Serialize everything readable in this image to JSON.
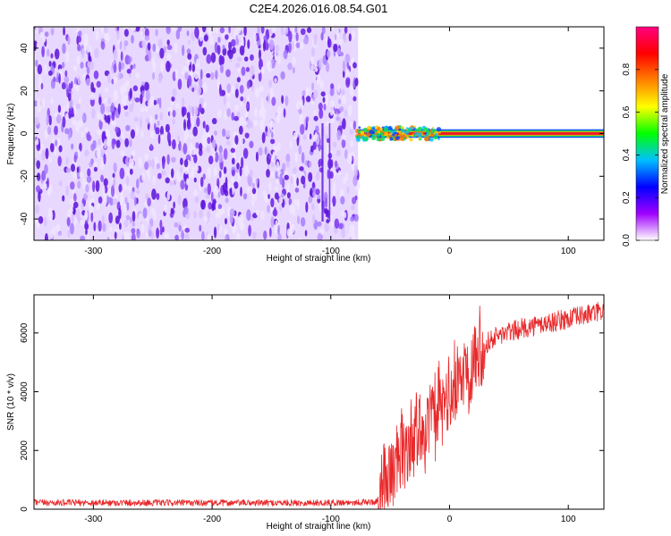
{
  "title": "C2E4.2026.016.08.54.G01",
  "chart_data": [
    {
      "type": "heatmap",
      "xlabel": "Height of straight line (km)",
      "ylabel": "Frequency (Hz)",
      "xlim": [
        -350,
        130
      ],
      "ylim": [
        -50,
        50
      ],
      "xticks": [
        -300,
        -200,
        -100,
        0,
        100
      ],
      "yticks": [
        -40,
        -20,
        0,
        20,
        40
      ],
      "noise_region_x": [
        -350,
        -77
      ],
      "signal_line_frequency": 0,
      "signal_start_x": -77,
      "colorbar": {
        "label": "Normalized spectral amplitude",
        "range": [
          0,
          1
        ],
        "ticks": [
          "0.0",
          "0.2",
          "0.4",
          "0.6",
          "0.8"
        ],
        "colors": [
          "#ffffff",
          "#a000ff",
          "#0000ff",
          "#00c0ff",
          "#00ff00",
          "#ffff00",
          "#ff8000",
          "#ff0000",
          "#ff0080"
        ]
      }
    },
    {
      "type": "line",
      "xlabel": "Height of straight line (km)",
      "ylabel": "SNR (10 * v/v)",
      "xlim": [
        -350,
        130
      ],
      "ylim": [
        0,
        7300
      ],
      "xticks": [
        -300,
        -200,
        -100,
        0,
        100
      ],
      "yticks": [
        0,
        2000,
        4000,
        6000
      ],
      "color": "#e8282a",
      "profile": [
        {
          "x": -350,
          "y": 180
        },
        {
          "x": -200,
          "y": 170
        },
        {
          "x": -100,
          "y": 175
        },
        {
          "x": -62,
          "y": 200
        },
        {
          "x": -55,
          "y": 900
        },
        {
          "x": -45,
          "y": 1600
        },
        {
          "x": -35,
          "y": 2200
        },
        {
          "x": -25,
          "y": 2700
        },
        {
          "x": -15,
          "y": 3100
        },
        {
          "x": -5,
          "y": 3500
        },
        {
          "x": 5,
          "y": 4100
        },
        {
          "x": 15,
          "y": 4900
        },
        {
          "x": 25,
          "y": 5500
        },
        {
          "x": 40,
          "y": 5900
        },
        {
          "x": 60,
          "y": 6150
        },
        {
          "x": 90,
          "y": 6400
        },
        {
          "x": 130,
          "y": 6750
        }
      ]
    }
  ]
}
